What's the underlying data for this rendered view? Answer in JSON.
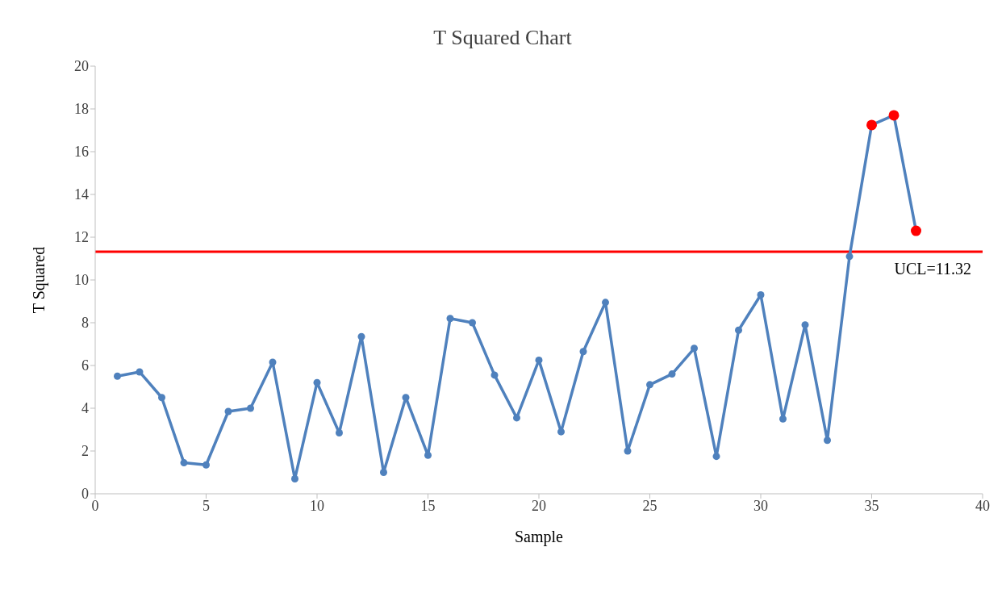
{
  "chart_data": {
    "type": "line",
    "title": "T Squared Chart",
    "xlabel": "Sample",
    "ylabel": "T Squared",
    "x": [
      1,
      2,
      3,
      4,
      5,
      6,
      7,
      8,
      9,
      10,
      11,
      12,
      13,
      14,
      15,
      16,
      17,
      18,
      19,
      20,
      21,
      22,
      23,
      24,
      25,
      26,
      27,
      28,
      29,
      30,
      31,
      32,
      33,
      34,
      35,
      36,
      37
    ],
    "series": [
      {
        "color": "#4f81bd",
        "values": [
          5.5,
          5.7,
          4.5,
          1.45,
          1.35,
          3.85,
          4.0,
          6.15,
          0.7,
          5.2,
          2.85,
          7.35,
          1.0,
          4.5,
          1.8,
          8.2,
          8.0,
          5.55,
          3.55,
          6.25,
          2.9,
          6.65,
          8.95,
          2.0,
          5.1,
          5.6,
          6.8,
          1.75,
          7.65,
          9.3,
          3.5,
          7.9,
          2.5,
          11.1,
          17.25,
          17.7,
          12.3
        ],
        "colors": [
          "#4f81bd",
          "#4f81bd",
          "#4f81bd",
          "#4f81bd",
          "#4f81bd",
          "#4f81bd",
          "#4f81bd",
          "#4f81bd",
          "#4f81bd",
          "#4f81bd",
          "#4f81bd",
          "#4f81bd",
          "#4f81bd",
          "#4f81bd",
          "#4f81bd",
          "#4f81bd",
          "#4f81bd",
          "#4f81bd",
          "#4f81bd",
          "#4f81bd",
          "#4f81bd",
          "#4f81bd",
          "#4f81bd",
          "#4f81bd",
          "#4f81bd",
          "#4f81bd",
          "#4f81bd",
          "#4f81bd",
          "#4f81bd",
          "#4f81bd",
          "#4f81bd",
          "#4f81bd",
          "#4f81bd",
          "#4f81bd",
          "#ff0000",
          "#ff0000",
          "#ff0000"
        ]
      }
    ],
    "xlim": [
      0,
      40
    ],
    "xticks": [
      0,
      5,
      10,
      15,
      20,
      25,
      30,
      35,
      40
    ],
    "ylim": [
      0,
      20
    ],
    "yticks": [
      0,
      2,
      4,
      6,
      8,
      10,
      12,
      14,
      16,
      18,
      20
    ],
    "ref_lines": [
      {
        "axis": "y",
        "value": 11.32,
        "label": "UCL=11.32",
        "color": "#ff0000"
      }
    ],
    "grid": false,
    "legend": false,
    "marker": "circle",
    "line_style": "solid"
  }
}
